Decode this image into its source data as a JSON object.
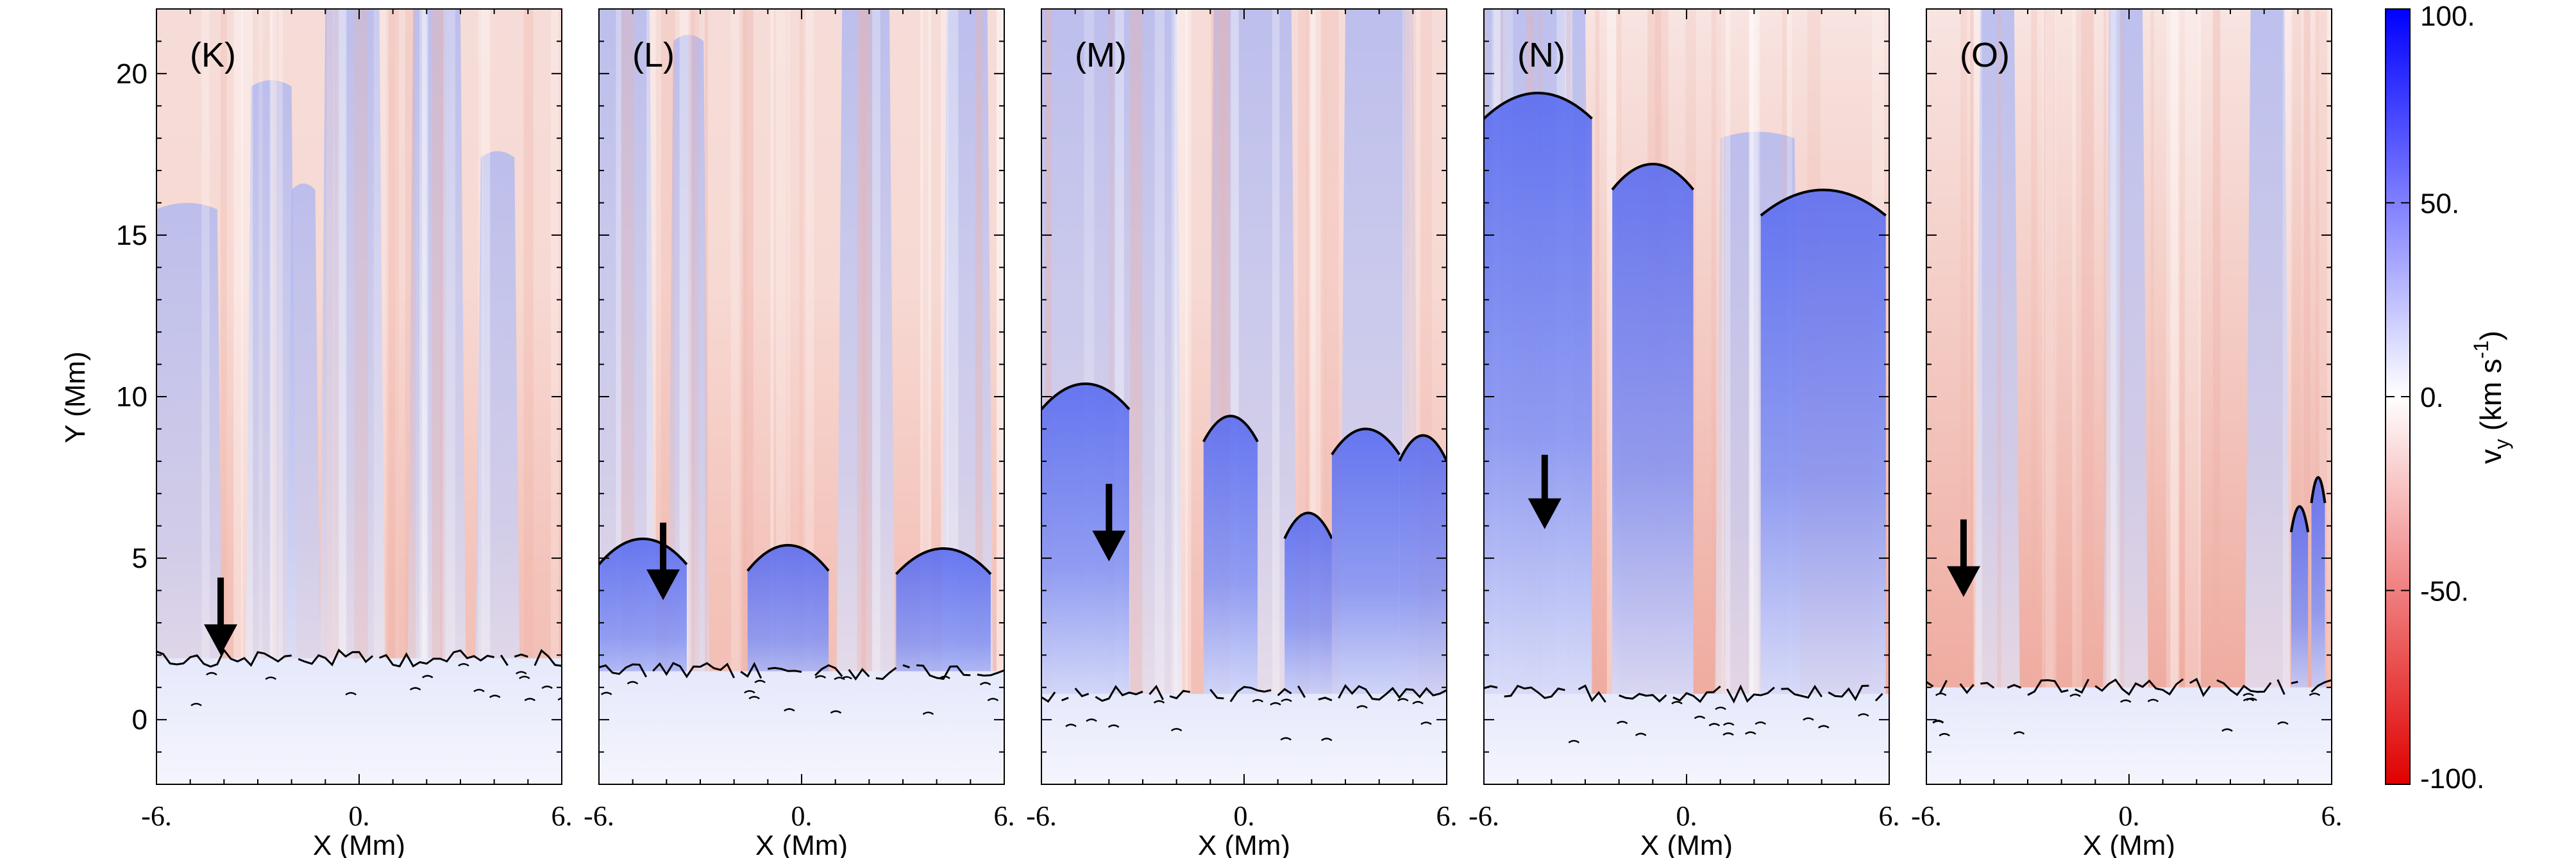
{
  "chart_data": {
    "type": "heatmap",
    "panels": [
      {
        "label": "(K)",
        "arrow_x": -4.1,
        "arrow_tip_y": 2.0,
        "arrow_tail_y": 4.4
      },
      {
        "label": "(L)",
        "arrow_x": -4.1,
        "arrow_tip_y": 3.7,
        "arrow_tail_y": 6.1
      },
      {
        "label": "(M)",
        "arrow_x": -4.0,
        "arrow_tip_y": 4.9,
        "arrow_tail_y": 7.3
      },
      {
        "label": "(N)",
        "arrow_x": -4.2,
        "arrow_tip_y": 5.9,
        "arrow_tail_y": 8.2
      },
      {
        "label": "(O)",
        "arrow_x": -4.9,
        "arrow_tip_y": 3.8,
        "arrow_tail_y": 6.2
      }
    ],
    "xlabel": "X (Mm)",
    "ylabel": "Y (Mm)",
    "xlim": [
      -6,
      6
    ],
    "ylim": [
      -2,
      22
    ],
    "xticks": [
      -6,
      0,
      6
    ],
    "xtick_labels": [
      "-6.",
      "0.",
      "6."
    ],
    "yticks": [
      0,
      5,
      10,
      15,
      20
    ],
    "ytick_labels": [
      "0",
      "5",
      "10",
      "15",
      "20"
    ],
    "colorbar": {
      "label": "v",
      "label_sub": "y",
      "label_unit": " (km s",
      "label_exp": "-1",
      "label_close": ")",
      "range": [
        -100,
        100
      ],
      "ticks": [
        100,
        50,
        0,
        -50,
        -100
      ],
      "tick_labels": [
        "100.",
        "50.",
        "0.",
        "-50.",
        "-100."
      ],
      "color_positive": "#0000ff",
      "color_zero": "#ffffff",
      "color_negative": "#e00000"
    },
    "grid": false
  }
}
